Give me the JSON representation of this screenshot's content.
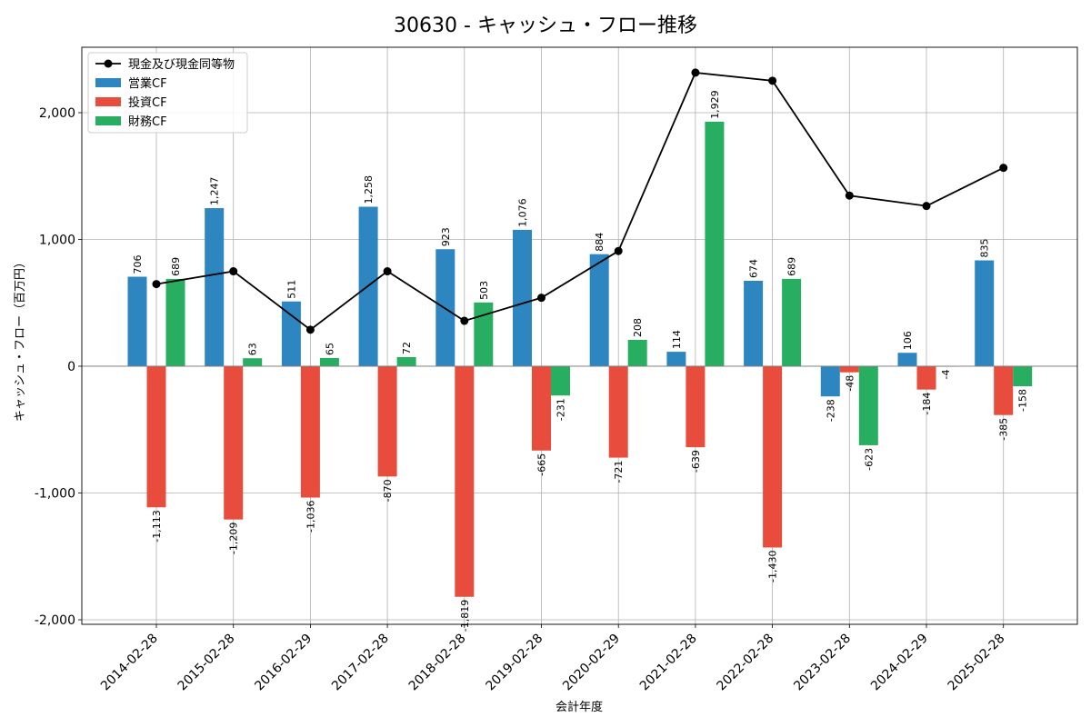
{
  "chart_data": {
    "type": "bar",
    "title": "30630 - キャッシュ・フロー推移",
    "xlabel": "会計年度",
    "ylabel": "キャッシュ・フロー（百万円）",
    "ylim": [
      -2030,
      2520
    ],
    "yticks": [
      -2000,
      -1000,
      0,
      1000,
      2000
    ],
    "ytick_labels": [
      "-2,000",
      "-1,000",
      "0",
      "1,000",
      "2,000"
    ],
    "grid": true,
    "legend_position": "top-left",
    "categories": [
      "2014-02-28",
      "2015-02-28",
      "2016-02-29",
      "2017-02-28",
      "2018-02-28",
      "2019-02-28",
      "2020-02-29",
      "2021-02-28",
      "2022-02-28",
      "2023-02-28",
      "2024-02-29",
      "2025-02-28"
    ],
    "series": [
      {
        "name": "営業CF",
        "kind": "bar",
        "color": "#2e86c1",
        "values": [
          706,
          1247,
          511,
          1258,
          923,
          1076,
          884,
          114,
          674,
          -238,
          106,
          835
        ],
        "labels": [
          "706",
          "1,247",
          "511",
          "1,258",
          "923",
          "1,076",
          "884",
          "114",
          "674",
          "-238",
          "106",
          "835"
        ]
      },
      {
        "name": "投資CF",
        "kind": "bar",
        "color": "#e74c3c",
        "values": [
          -1113,
          -1209,
          -1036,
          -870,
          -1819,
          -665,
          -721,
          -639,
          -1430,
          -48,
          -184,
          -385
        ],
        "labels": [
          "-1,113",
          "-1,209",
          "-1,036",
          "-870",
          "-1,819",
          "-665",
          "-721",
          "-639",
          "-1,430",
          "-48",
          "-184",
          "-385"
        ]
      },
      {
        "name": "財務CF",
        "kind": "bar",
        "color": "#27ae60",
        "values": [
          689,
          63,
          65,
          72,
          503,
          -231,
          208,
          1929,
          689,
          -623,
          -4,
          -158
        ],
        "labels": [
          "689",
          "63",
          "65",
          "72",
          "503",
          "-231",
          "208",
          "1,929",
          "689",
          "-623",
          "-4",
          "-158"
        ]
      },
      {
        "name": "現金及び現金同等物",
        "kind": "line",
        "color": "#000000",
        "values": [
          648,
          749,
          288,
          749,
          358,
          540,
          909,
          2316,
          2252,
          1346,
          1264,
          1565
        ]
      }
    ]
  }
}
